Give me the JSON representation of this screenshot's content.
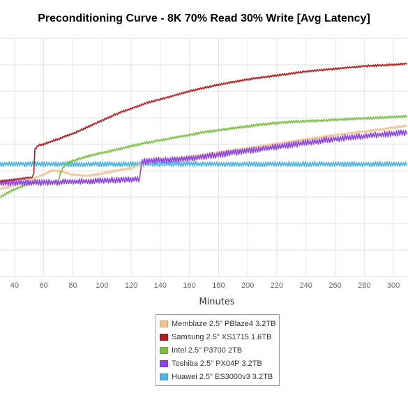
{
  "chart_data": {
    "type": "line",
    "title": "Preconditioning Curve - 8K 70% Read 30% Write [Avg Latency]",
    "xlabel": "Minutes",
    "ylabel": "",
    "xlim": [
      30,
      310
    ],
    "ylim": [
      0,
      9
    ],
    "x_ticks": [
      40,
      60,
      80,
      100,
      120,
      140,
      160,
      180,
      200,
      220,
      240,
      260,
      280,
      300
    ],
    "grid": true,
    "legend_position": "bottom-center",
    "series": [
      {
        "name": "Memblaze 2.5\" PBlaze4 3.2TB",
        "color": "#f2c28d",
        "x": [
          30,
          40,
          50,
          55,
          60,
          65,
          70,
          80,
          90,
          100,
          120,
          130,
          150,
          170,
          200,
          230,
          260,
          290,
          310
        ],
        "y": [
          3.3,
          3.45,
          3.6,
          3.75,
          3.85,
          4.0,
          4.0,
          3.85,
          3.8,
          3.9,
          4.1,
          4.3,
          4.45,
          4.6,
          4.85,
          5.1,
          5.35,
          5.55,
          5.7
        ]
      },
      {
        "name": "Samsung 2.5\" XS1715 1.6TB",
        "color": "#b71c1c",
        "x": [
          30,
          53,
          54,
          56,
          60,
          70,
          80,
          90,
          100,
          110,
          120,
          130,
          140,
          150,
          160,
          180,
          200,
          220,
          240,
          260,
          280,
          300,
          310
        ],
        "y": [
          3.6,
          3.75,
          4.8,
          4.95,
          5.0,
          5.2,
          5.4,
          5.65,
          5.9,
          6.15,
          6.35,
          6.55,
          6.7,
          6.85,
          7.0,
          7.25,
          7.45,
          7.6,
          7.75,
          7.85,
          7.95,
          8.0,
          8.05
        ]
      },
      {
        "name": "Intel 2.5\" P3700 2TB",
        "color": "#7ac143",
        "x": [
          30,
          40,
          50,
          60,
          70,
          72,
          76,
          90,
          110,
          130,
          150,
          170,
          190,
          210,
          230,
          250,
          270,
          290,
          310
        ],
        "y": [
          3.0,
          3.3,
          3.5,
          3.55,
          3.6,
          4.0,
          4.3,
          4.55,
          4.8,
          5.05,
          5.25,
          5.45,
          5.6,
          5.75,
          5.85,
          5.9,
          5.95,
          6.0,
          6.05
        ]
      },
      {
        "name": "Toshiba 2.5\" PX04P 3.2TB",
        "color": "#8e44ec",
        "x": [
          30,
          60,
          90,
          110,
          126,
          127,
          128,
          140,
          160,
          180,
          200,
          220,
          240,
          260,
          280,
          300,
          310
        ],
        "y": [
          3.55,
          3.55,
          3.6,
          3.65,
          3.7,
          4.35,
          4.35,
          4.4,
          4.45,
          4.6,
          4.75,
          4.9,
          5.05,
          5.2,
          5.3,
          5.4,
          5.45
        ]
      },
      {
        "name": "Huawei 2.5\" ES3000v3 3.2TB",
        "color": "#4bb4e6",
        "x": [
          30,
          60,
          90,
          120,
          150,
          180,
          210,
          240,
          270,
          300,
          310
        ],
        "y": [
          4.25,
          4.25,
          4.25,
          4.25,
          4.25,
          4.25,
          4.25,
          4.25,
          4.25,
          4.25,
          4.25
        ]
      }
    ]
  }
}
